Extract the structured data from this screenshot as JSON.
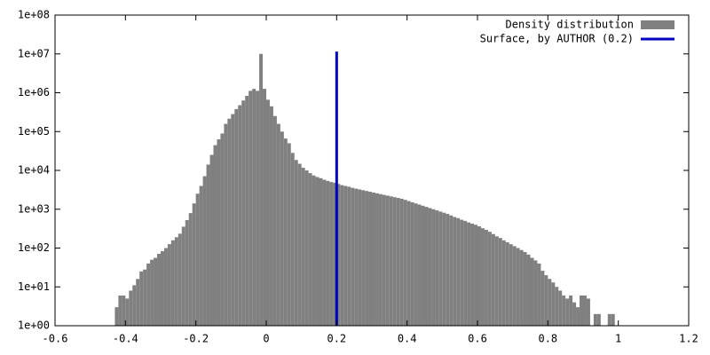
{
  "chart_data": {
    "type": "histogram",
    "log_y": true,
    "legend": "top-right",
    "xlim": [
      -0.6,
      1.2
    ],
    "xticks": [
      -0.6,
      -0.4,
      -0.2,
      0,
      0.2,
      0.4,
      0.6,
      0.8,
      1,
      1.2
    ],
    "ylim": [
      1,
      100000000
    ],
    "yticks": [
      {
        "value": 1,
        "label": "1e+00"
      },
      {
        "value": 10,
        "label": "1e+01"
      },
      {
        "value": 100,
        "label": "1e+02"
      },
      {
        "value": 1000,
        "label": "1e+03"
      },
      {
        "value": 10000,
        "label": "1e+04"
      },
      {
        "value": 100000,
        "label": "1e+05"
      },
      {
        "value": 1000000,
        "label": "1e+06"
      },
      {
        "value": 10000000,
        "label": "1e+07"
      },
      {
        "value": 100000000,
        "label": "1e+08"
      }
    ],
    "bins": [
      -0.43,
      -0.42,
      -0.41,
      -0.4,
      -0.39,
      -0.38,
      -0.37,
      -0.36,
      -0.35,
      -0.34,
      -0.33,
      -0.32,
      -0.31,
      -0.3,
      -0.29,
      -0.28,
      -0.27,
      -0.26,
      -0.25,
      -0.24,
      -0.23,
      -0.22,
      -0.21,
      -0.2,
      -0.19,
      -0.18,
      -0.17,
      -0.16,
      -0.15,
      -0.14,
      -0.13,
      -0.12,
      -0.11,
      -0.1,
      -0.09,
      -0.08,
      -0.07,
      -0.06,
      -0.05,
      -0.04,
      -0.03,
      -0.02,
      -0.01,
      0,
      0.01,
      0.02,
      0.03,
      0.04,
      0.05,
      0.06,
      0.07,
      0.08,
      0.09,
      0.1,
      0.11,
      0.12,
      0.13,
      0.14,
      0.15,
      0.16,
      0.17,
      0.18,
      0.19,
      0.2,
      0.21,
      0.22,
      0.23,
      0.24,
      0.25,
      0.26,
      0.27,
      0.28,
      0.29,
      0.3,
      0.31,
      0.32,
      0.33,
      0.34,
      0.35,
      0.36,
      0.37,
      0.38,
      0.39,
      0.4,
      0.41,
      0.42,
      0.43,
      0.44,
      0.45,
      0.46,
      0.47,
      0.48,
      0.49,
      0.5,
      0.51,
      0.52,
      0.53,
      0.54,
      0.55,
      0.56,
      0.57,
      0.58,
      0.59,
      0.6,
      0.61,
      0.62,
      0.63,
      0.64,
      0.65,
      0.66,
      0.67,
      0.68,
      0.69,
      0.7,
      0.71,
      0.72,
      0.73,
      0.74,
      0.75,
      0.76,
      0.77,
      0.78,
      0.79,
      0.8,
      0.81,
      0.82,
      0.83,
      0.84,
      0.85,
      0.86,
      0.87,
      0.88,
      0.89,
      0.9,
      0.91,
      0.92,
      0.93,
      0.94,
      0.95,
      0.96,
      0.97,
      0.98,
      0.99
    ],
    "series": [
      {
        "name": "Density distribution",
        "color": "#808080",
        "values": [
          3,
          6,
          6,
          5,
          8,
          11,
          16,
          25,
          28,
          40,
          50,
          56,
          71,
          83,
          100,
          126,
          158,
          190,
          234,
          355,
          525,
          794,
          1410,
          2510,
          3980,
          7080,
          14100,
          25100,
          44700,
          63100,
          89100,
          158000,
          214000,
          282000,
          380000,
          479000,
          631000,
          832000,
          1120000,
          1260000,
          1120000,
          10000000,
          1260000,
          661000,
          447000,
          251000,
          158000,
          100000,
          66100,
          50100,
          28200,
          18600,
          14800,
          11700,
          10000,
          8510,
          7410,
          6760,
          6310,
          5750,
          5370,
          5010,
          4790,
          4470,
          4170,
          3980,
          3800,
          3550,
          3390,
          3240,
          3090,
          2950,
          2820,
          2690,
          2570,
          2450,
          2340,
          2240,
          2140,
          2040,
          1950,
          1860,
          1740,
          1620,
          1510,
          1410,
          1320,
          1230,
          1150,
          1070,
          1000,
          933,
          871,
          813,
          759,
          692,
          631,
          589,
          537,
          501,
          457,
          427,
          398,
          363,
          324,
          295,
          263,
          229,
          200,
          182,
          158,
          141,
          126,
          112,
          100,
          89,
          79,
          68,
          56,
          48,
          40,
          26,
          20,
          16,
          13,
          10,
          8,
          6,
          5,
          6,
          4,
          3,
          6,
          6,
          5,
          0,
          2,
          2,
          0,
          0,
          2,
          2
        ]
      },
      {
        "name": "Surface, by AUTHOR (0.2)",
        "color": "#0000c0",
        "type": "line",
        "x": [
          0.2,
          0.2
        ],
        "values": [
          1,
          11500000
        ]
      }
    ]
  }
}
